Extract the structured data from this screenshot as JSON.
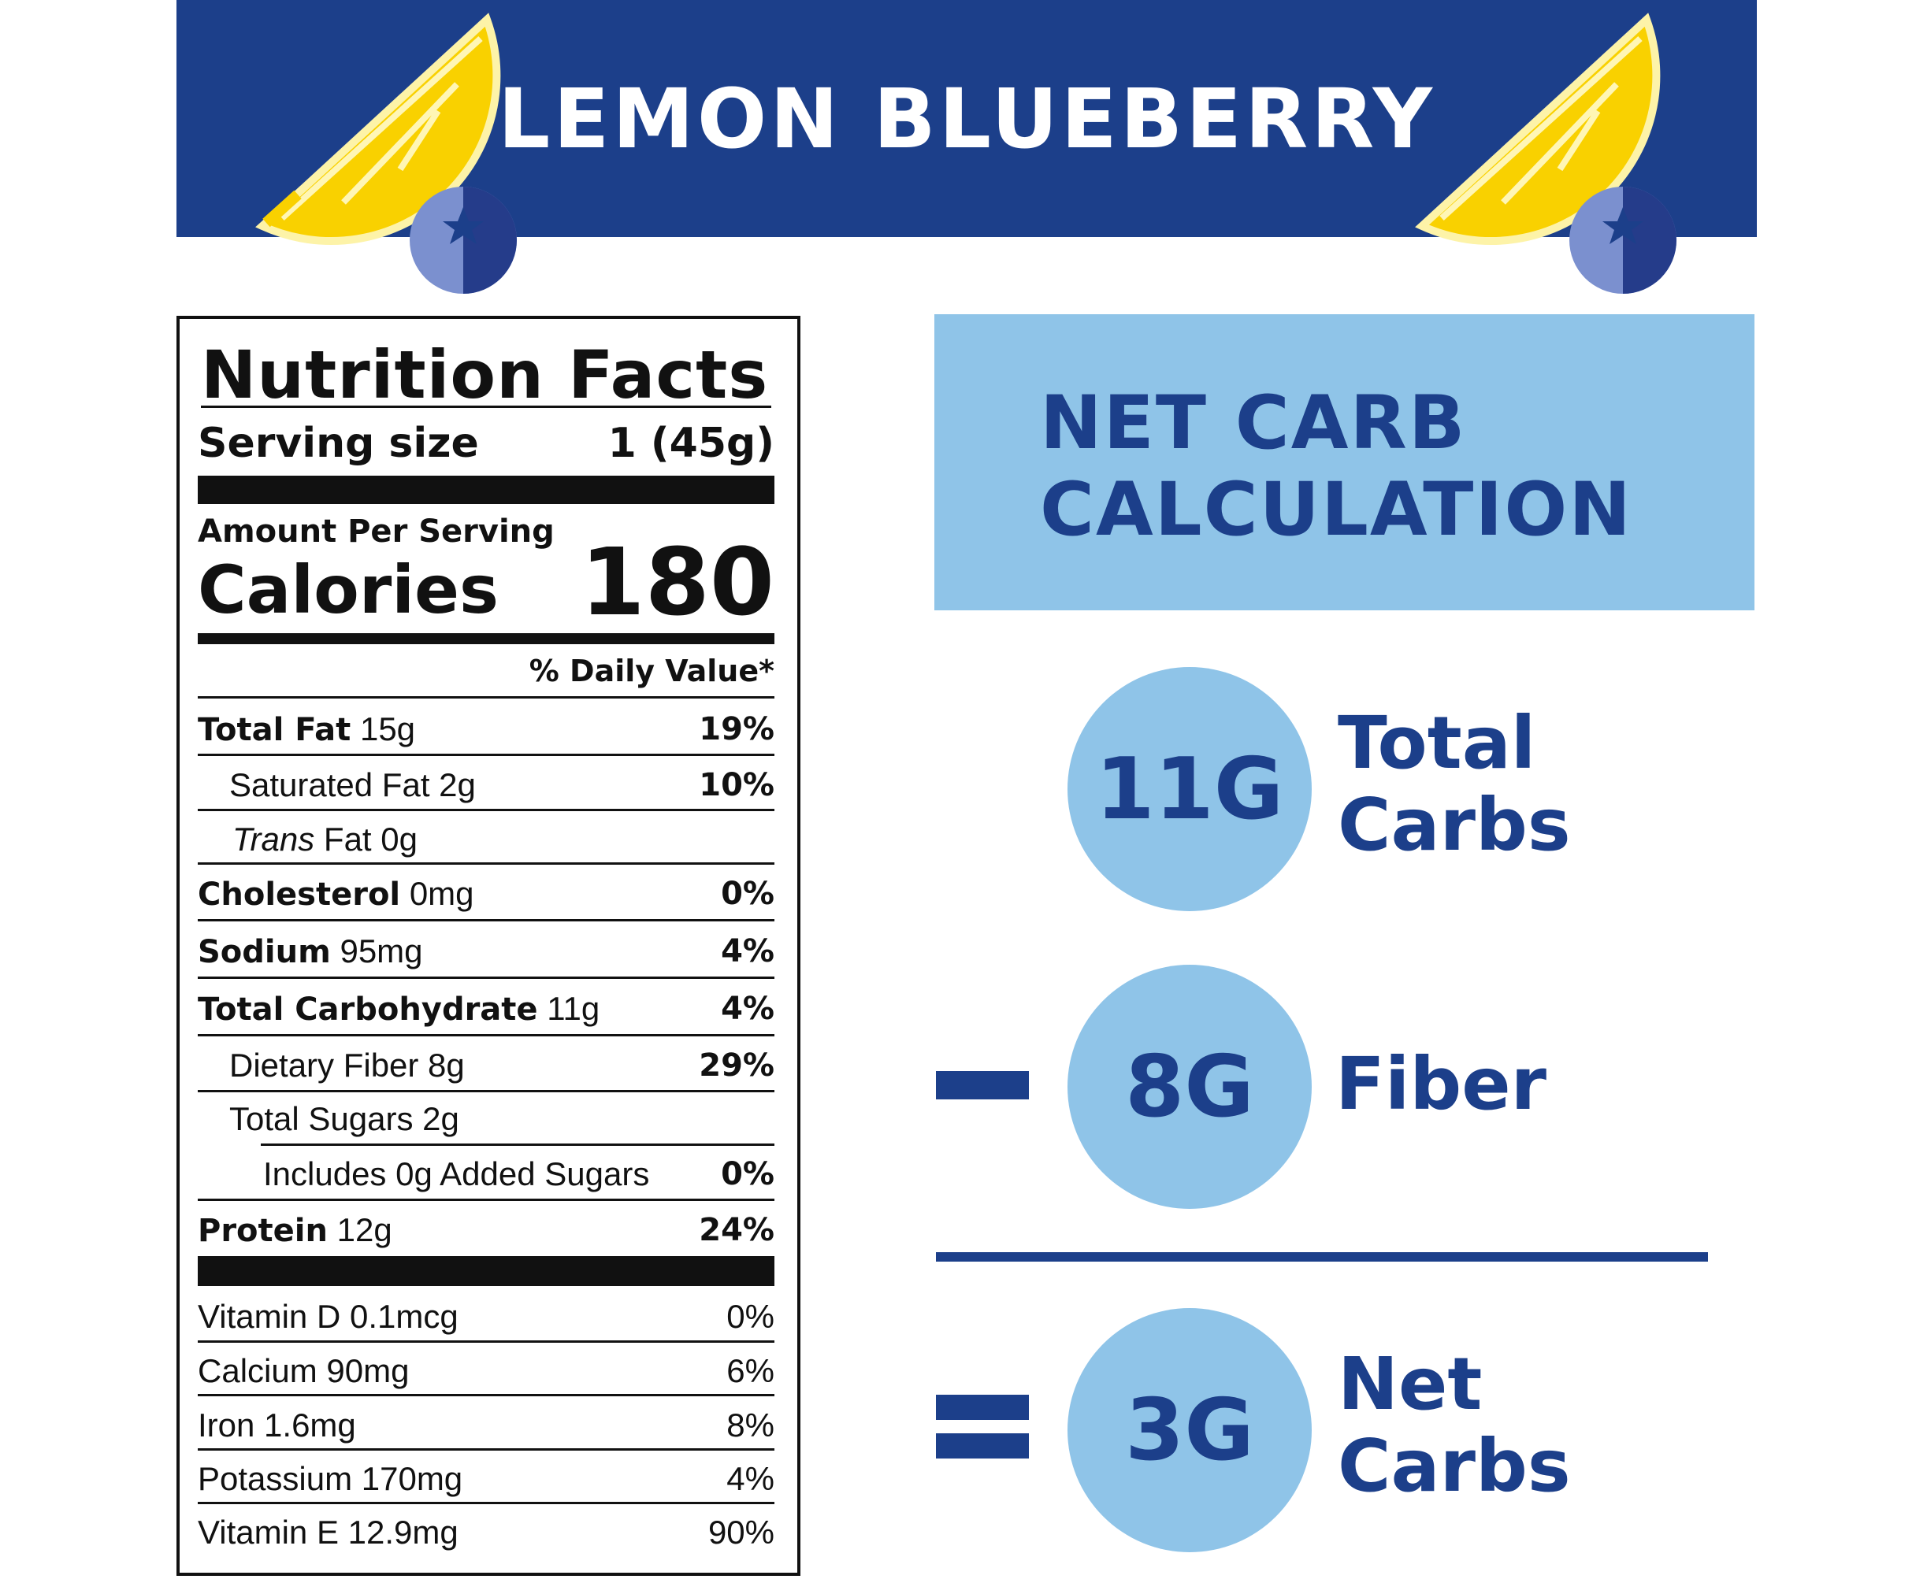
{
  "banner": {
    "title": "LEMON BLUEBERRY",
    "colors": {
      "navy": "#1c3f8a",
      "lemon": "#f9d100",
      "blueberry_light": "#7b90cf",
      "blueberry_dark": "#253c8a"
    }
  },
  "nutrition": {
    "title": "Nutrition Facts",
    "serving_label": "Serving size",
    "serving_value": "1 (45g)",
    "amount_per_serving": "Amount Per Serving",
    "calories_label": "Calories",
    "calories_value": "180",
    "daily_value_header": "% Daily Value*",
    "rows": [
      {
        "bold": "Total Fat",
        "amount": "15g",
        "pct": "19%"
      },
      {
        "bold": "",
        "amount": "Saturated Fat 2g",
        "pct": "10%"
      },
      {
        "italic": "Trans",
        "amount": "Fat 0g",
        "pct": ""
      },
      {
        "bold": "Cholesterol",
        "amount": "0mg",
        "pct": "0%"
      },
      {
        "bold": "Sodium",
        "amount": "95mg",
        "pct": "4%"
      },
      {
        "bold": "Total Carbohydrate",
        "amount": "11g",
        "pct": "4%"
      },
      {
        "bold": "",
        "amount": "Dietary Fiber 8g",
        "pct": "29%"
      },
      {
        "bold": "",
        "amount": "Total Sugars 2g",
        "pct": ""
      },
      {
        "bold": "",
        "amount": "Includes 0g Added Sugars",
        "pct": "0%"
      },
      {
        "bold": "Protein",
        "amount": "12g",
        "pct": "24%"
      }
    ],
    "vitamins": [
      {
        "name": "Vitamin D 0.1mcg",
        "pct": "0%"
      },
      {
        "name": "Calcium 90mg",
        "pct": "6%"
      },
      {
        "name": "Iron 1.6mg",
        "pct": "8%"
      },
      {
        "name": "Potassium 170mg",
        "pct": "4%"
      },
      {
        "name": "Vitamin E 12.9mg",
        "pct": "90%"
      }
    ]
  },
  "net_carb": {
    "title_line1": "NET CARB",
    "title_line2": "CALCULATION",
    "total": {
      "value": "11G",
      "label_line1": "Total",
      "label_line2": "Carbs"
    },
    "fiber": {
      "value": "8G",
      "label_line1": "Fiber"
    },
    "net": {
      "value": "3G",
      "label_line1": "Net",
      "label_line2": "Carbs"
    },
    "colors": {
      "panel": "#8fc4e8",
      "text": "#1c3f8a"
    }
  }
}
